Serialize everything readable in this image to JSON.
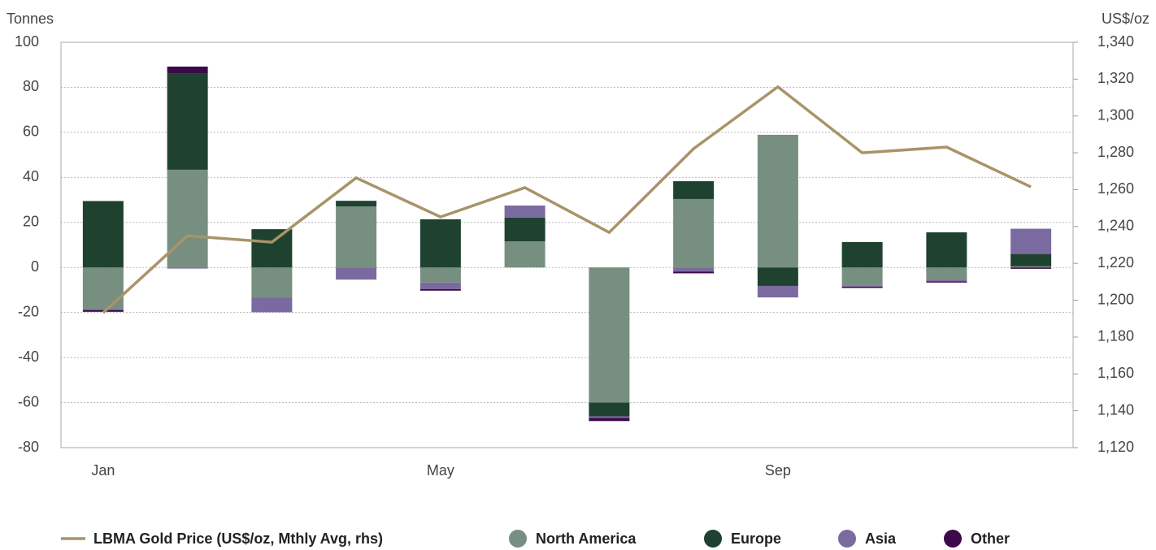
{
  "chart_data": {
    "type": "bar",
    "y_label": "Tonnes",
    "y2_label": "US$/oz",
    "categories": [
      "Jan",
      null,
      null,
      null,
      "May",
      null,
      null,
      null,
      "Sep",
      null,
      null,
      null
    ],
    "ylim": [
      -80,
      100
    ],
    "yticks": [
      -80,
      -60,
      -40,
      -20,
      0,
      20,
      40,
      60,
      80,
      100
    ],
    "y2lim": [
      1120,
      1340
    ],
    "y2ticks": [
      {
        "value": 1120,
        "label": "1,120"
      },
      {
        "value": 1140,
        "label": "1,140"
      },
      {
        "value": 1160,
        "label": "1,160"
      },
      {
        "value": 1180,
        "label": "1,180"
      },
      {
        "value": 1200,
        "label": "1,200"
      },
      {
        "value": 1220,
        "label": "1,220"
      },
      {
        "value": 1240,
        "label": "1,240"
      },
      {
        "value": 1260,
        "label": "1,260"
      },
      {
        "value": 1280,
        "label": "1,280"
      },
      {
        "value": 1300,
        "label": "1,300"
      },
      {
        "value": 1320,
        "label": "1,320"
      },
      {
        "value": 1340,
        "label": "1,340"
      }
    ],
    "grid": true,
    "legend": "bottom",
    "series": [
      {
        "name": "LBMA Gold Price (US$/oz, Mthly Avg, rhs)",
        "type": "line",
        "axis": "y2",
        "color": "#a89468",
        "values": [
          1193.2,
          1235,
          1231.5,
          1266.4,
          1245.2,
          1261.1,
          1236.8,
          1282.2,
          1315.8,
          1280,
          1283.1,
          1261.5
        ]
      },
      {
        "name": "North America",
        "color": "#768f80",
        "values": [
          -18.4,
          43.4,
          -13.3,
          27.1,
          -6.7,
          11.6,
          -60,
          30.4,
          58.9,
          -8.2,
          -5.4,
          0.5
        ]
      },
      {
        "name": "Europe",
        "color": "#1f4230",
        "values": [
          29.5,
          42.6,
          17,
          2.5,
          21.4,
          10.5,
          -6.1,
          7.9,
          -8.2,
          11.3,
          15.6,
          5.5
        ]
      },
      {
        "name": "Asia",
        "color": "#7b6aa0",
        "values": [
          -0.5,
          -0.5,
          -6.6,
          -5.4,
          -2.9,
          5.4,
          -0.7,
          -1.8,
          -5.1,
          -0.3,
          -0.8,
          11.2
        ]
      },
      {
        "name": "Other",
        "color": "#3c0a4a",
        "values": [
          -0.8,
          3.2,
          0,
          0,
          -0.7,
          0,
          -1.4,
          -0.8,
          0,
          -0.6,
          -0.5,
          -0.6
        ]
      }
    ]
  }
}
